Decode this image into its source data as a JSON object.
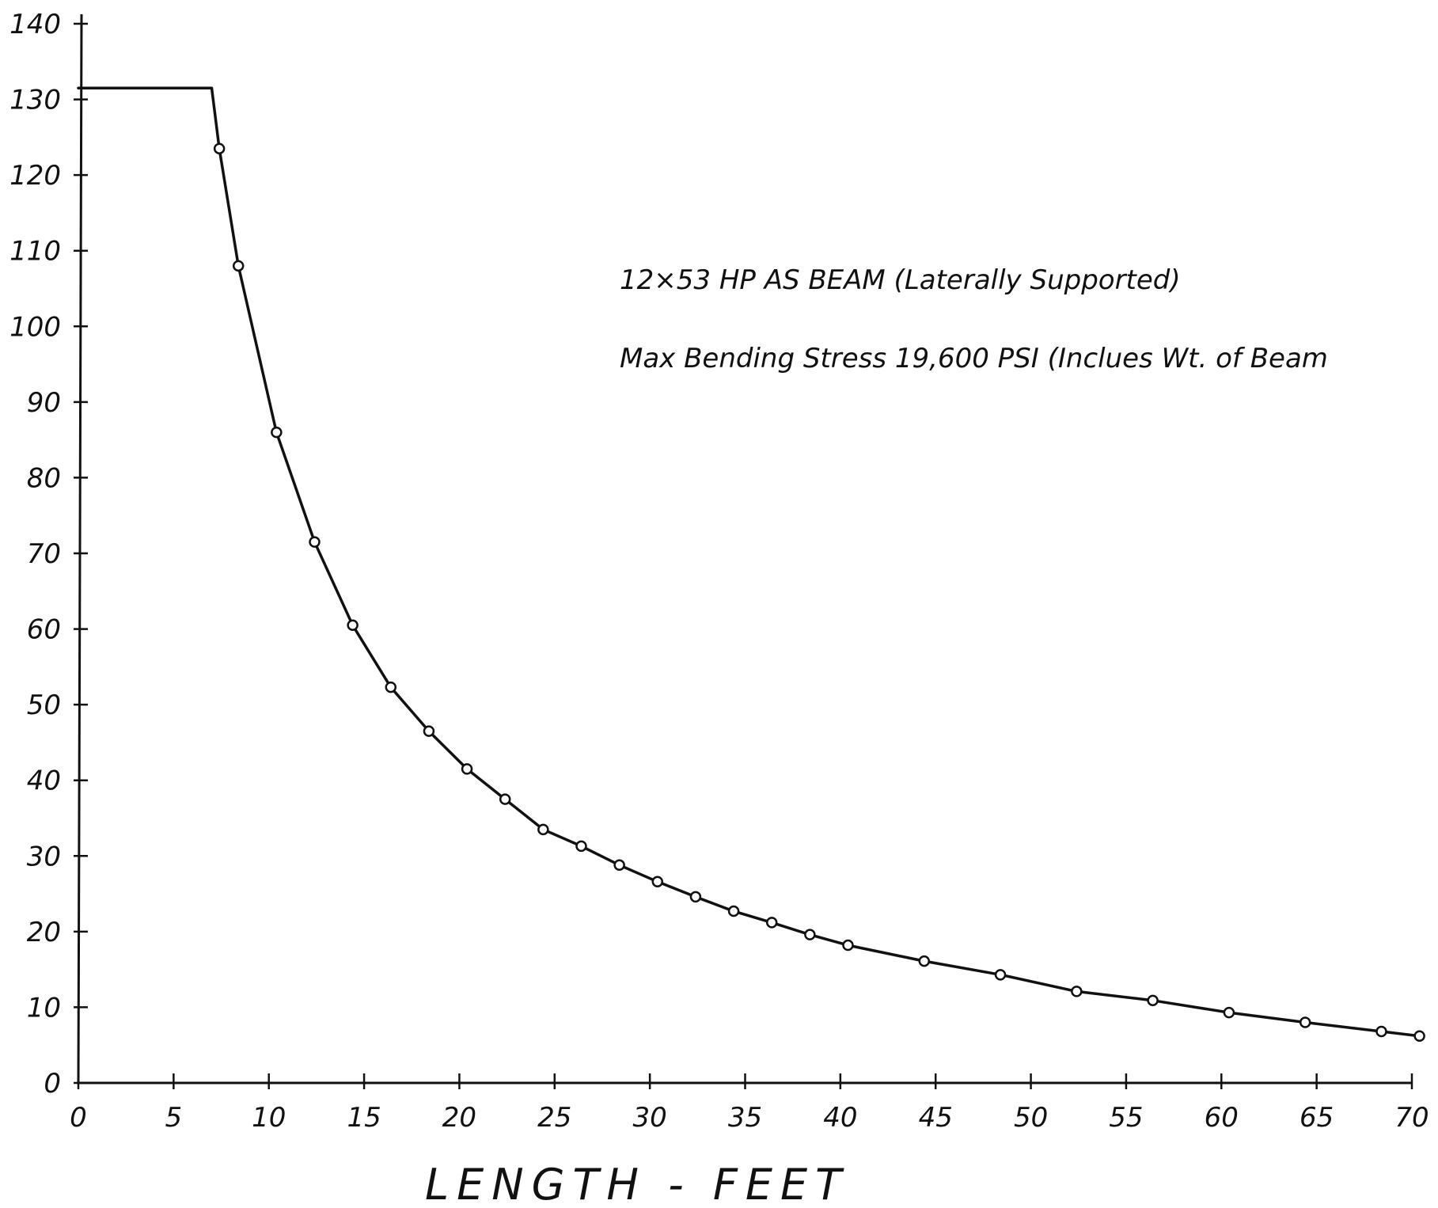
{
  "chart_data": {
    "type": "line",
    "title": "",
    "xlabel": "LENGTH - FEET",
    "ylabel": "",
    "xlim": [
      0,
      70
    ],
    "ylim": [
      0,
      140
    ],
    "grid": false,
    "x_ticks": [
      "0",
      "5",
      "10",
      "15",
      "20",
      "25",
      "30",
      "35",
      "40",
      "45",
      "50",
      "55",
      "60",
      "65",
      "70"
    ],
    "y_ticks": [
      "0",
      "10",
      "20",
      "30",
      "40",
      "50",
      "60",
      "70",
      "80",
      "90",
      "100",
      "110",
      "120",
      "130",
      "140"
    ],
    "annotations": [
      "12×53 HP  AS  BEAM (Laterally Supported)",
      "Max Bending Stress 19,600 PSI (Inclues Wt. of Beam"
    ],
    "series": [
      {
        "style": "line",
        "x": [
          0,
          6.6,
          7.0,
          7.4,
          8.4,
          10.4,
          12.4,
          14.4,
          16.4,
          18.4,
          20.4,
          22.4,
          24.4,
          26.4,
          28.4,
          30.4,
          32.4,
          34.4,
          36.4,
          38.4,
          40.4,
          44.4,
          48.4,
          52.4,
          56.4,
          60.4,
          64.4,
          68.4,
          70.4
        ],
        "y": [
          131.5,
          131.5,
          131.5,
          123.5,
          108,
          86,
          71.5,
          60.5,
          52.3,
          46.5,
          41.5,
          37.5,
          33.5,
          31.3,
          28.8,
          26.6,
          24.6,
          22.7,
          21.2,
          19.6,
          18.2,
          16.1,
          14.3,
          12.1,
          10.9,
          9.3,
          8.0,
          6.8,
          6.2
        ]
      },
      {
        "style": "markers",
        "x": [
          7.4,
          8.4,
          10.4,
          12.4,
          14.4,
          16.4,
          18.4,
          20.4,
          22.4,
          24.4,
          26.4,
          28.4,
          30.4,
          32.4,
          34.4,
          36.4,
          38.4,
          40.4,
          44.4,
          48.4,
          52.4,
          56.4,
          60.4,
          64.4,
          68.4,
          70.4
        ],
        "y": [
          123.5,
          108,
          86,
          71.5,
          60.5,
          52.3,
          46.5,
          41.5,
          37.5,
          33.5,
          31.3,
          28.8,
          26.6,
          24.6,
          22.7,
          21.2,
          19.6,
          18.2,
          16.1,
          14.3,
          12.1,
          10.9,
          9.3,
          8.0,
          6.8,
          6.2
        ]
      }
    ]
  }
}
